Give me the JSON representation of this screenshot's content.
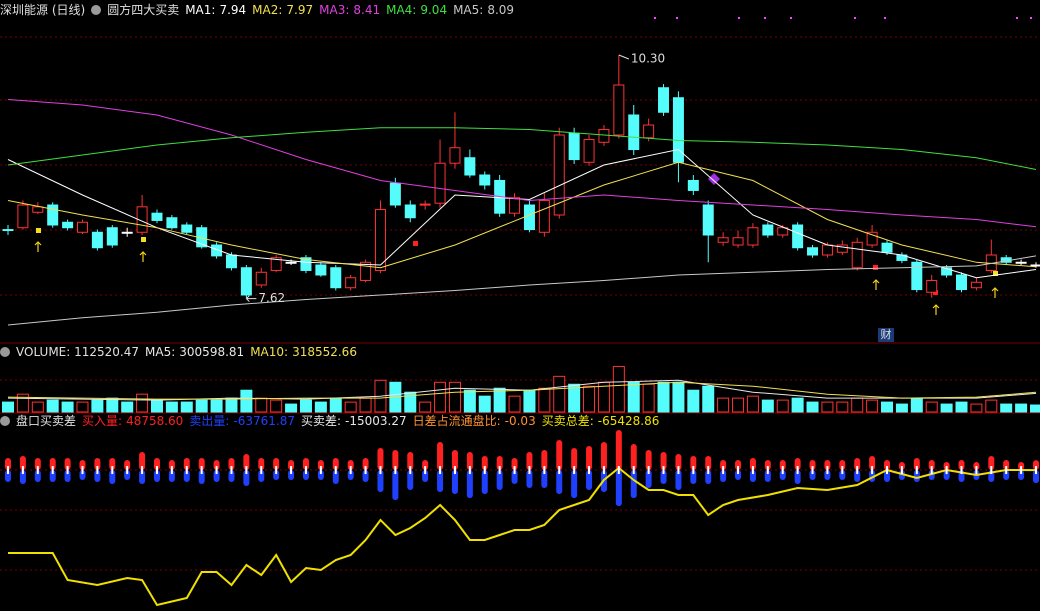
{
  "chart_data": [
    {
      "type": "candlestick",
      "title": "深圳能源 (日线)",
      "indicator": "圆方四大买卖",
      "xlim": [
        1,
        70
      ],
      "ylim": [
        7.275,
        10.905
      ],
      "candles": {
        "open": [
          8.38,
          8.4,
          8.57,
          8.65,
          8.46,
          8.35,
          8.35,
          8.4,
          8.35,
          8.35,
          8.56,
          8.51,
          8.43,
          8.4,
          8.21,
          8.1,
          7.96,
          7.77,
          7.93,
          8.02,
          8.07,
          7.99,
          7.96,
          7.74,
          7.82,
          7.93,
          8.89,
          8.65,
          8.65,
          8.67,
          9.11,
          9.17,
          8.98,
          8.92,
          8.56,
          8.65,
          8.35,
          8.54,
          9.44,
          9.12,
          9.34,
          9.42,
          9.64,
          9.39,
          9.94,
          9.83,
          8.92,
          8.65,
          8.24,
          8.21,
          8.21,
          8.43,
          8.32,
          8.43,
          8.18,
          8.1,
          8.13,
          7.96,
          8.21,
          8.23,
          8.1,
          8.02,
          7.69,
          7.96,
          7.88,
          7.74,
          7.93,
          8.07,
          8.02,
          7.99
        ],
        "high": [
          8.43,
          8.7,
          8.68,
          8.68,
          8.49,
          8.49,
          8.38,
          8.43,
          8.4,
          8.76,
          8.6,
          8.54,
          8.46,
          8.43,
          8.24,
          8.13,
          7.99,
          7.96,
          8.1,
          8.05,
          8.1,
          8.02,
          7.99,
          7.88,
          8.05,
          8.7,
          8.95,
          8.7,
          8.7,
          9.37,
          9.67,
          9.26,
          9.02,
          8.98,
          8.78,
          8.7,
          8.78,
          9.5,
          9.5,
          9.42,
          9.53,
          10.3,
          9.75,
          9.6,
          9.98,
          9.9,
          8.98,
          8.7,
          8.35,
          8.37,
          8.45,
          8.46,
          8.43,
          8.46,
          8.21,
          8.24,
          8.26,
          8.29,
          8.43,
          8.26,
          8.13,
          8.05,
          7.88,
          7.99,
          7.91,
          7.85,
          8.27,
          8.1,
          8.05,
          8.02
        ],
        "low": [
          8.32,
          8.38,
          8.55,
          8.4,
          8.37,
          8.33,
          8.15,
          8.18,
          8.3,
          8.32,
          8.45,
          8.38,
          8.33,
          8.17,
          8.06,
          7.93,
          7.62,
          7.74,
          7.91,
          7.99,
          7.9,
          7.86,
          7.71,
          7.71,
          7.8,
          7.9,
          8.62,
          8.46,
          8.6,
          8.62,
          9.05,
          8.95,
          8.82,
          8.52,
          8.52,
          8.35,
          8.3,
          8.5,
          9.1,
          9.08,
          9.3,
          9.38,
          9.2,
          9.35,
          9.63,
          8.9,
          8.76,
          8.02,
          8.2,
          8.18,
          8.18,
          8.29,
          8.29,
          8.15,
          8.07,
          8.07,
          8.1,
          7.93,
          8.18,
          8.1,
          8.01,
          7.69,
          7.63,
          7.85,
          7.69,
          7.71,
          7.9,
          7.99,
          7.99,
          7.96
        ],
        "close": [
          8.37,
          8.65,
          8.63,
          8.43,
          8.4,
          8.46,
          8.18,
          8.21,
          8.35,
          8.63,
          8.48,
          8.4,
          8.35,
          8.19,
          8.09,
          7.96,
          7.66,
          7.91,
          8.07,
          8.02,
          7.93,
          7.88,
          7.74,
          7.85,
          8.02,
          8.6,
          8.65,
          8.51,
          8.66,
          9.11,
          9.28,
          8.98,
          8.87,
          8.56,
          8.73,
          8.38,
          8.7,
          9.42,
          9.15,
          9.37,
          9.48,
          9.97,
          9.26,
          9.53,
          9.67,
          9.12,
          8.81,
          8.32,
          8.29,
          8.29,
          8.4,
          8.32,
          8.4,
          8.18,
          8.1,
          8.21,
          8.21,
          8.24,
          8.35,
          8.13,
          8.04,
          7.72,
          7.82,
          7.88,
          7.72,
          7.8,
          8.1,
          8.02,
          8.02,
          7.99
        ]
      },
      "up_color": "#ff3232",
      "down_color": "#54fcfc",
      "ma_x": [
        1,
        6,
        11,
        16,
        21,
        26,
        31,
        36,
        41,
        46,
        51,
        56,
        61,
        66,
        70
      ],
      "series": [
        {
          "name": "MA1:",
          "current": 7.94,
          "color": "#ffffff",
          "values": [
            9.15,
            8.76,
            8.4,
            8.1,
            8.02,
            7.99,
            8.76,
            8.71,
            9.09,
            9.26,
            8.54,
            8.21,
            8.1,
            7.85,
            7.94
          ]
        },
        {
          "name": "MA2:",
          "current": 7.97,
          "color": "#f0e050",
          "values": [
            8.7,
            8.54,
            8.4,
            8.21,
            8.05,
            7.96,
            8.21,
            8.54,
            8.87,
            9.12,
            8.92,
            8.49,
            8.21,
            8.02,
            7.97
          ]
        },
        {
          "name": "MA3:",
          "current": 8.41,
          "color": "#e040e0",
          "values": [
            9.81,
            9.75,
            9.64,
            9.42,
            9.15,
            8.92,
            8.81,
            8.7,
            8.76,
            8.7,
            8.65,
            8.6,
            8.54,
            8.49,
            8.41
          ]
        },
        {
          "name": "MA4:",
          "current": 9.04,
          "color": "#40e040",
          "values": [
            9.09,
            9.2,
            9.31,
            9.39,
            9.45,
            9.5,
            9.5,
            9.48,
            9.42,
            9.36,
            9.34,
            9.31,
            9.26,
            9.17,
            9.04
          ]
        },
        {
          "name": "MA5:",
          "current": 8.09,
          "color": "#c8c8c8",
          "values": [
            7.33,
            7.41,
            7.47,
            7.55,
            7.61,
            7.66,
            7.71,
            7.77,
            7.82,
            7.88,
            7.91,
            7.94,
            7.96,
            7.98,
            8.09
          ]
        }
      ],
      "max_marker": {
        "value": 10.3,
        "label": "10.30"
      },
      "min_marker": 7.62,
      "event_label": "财"
    },
    {
      "type": "bar",
      "title": "VOLUME:",
      "xlim": [
        1,
        70
      ],
      "ylim": [
        0,
        840000
      ],
      "values": [
        160000,
        288000,
        160000,
        192000,
        160000,
        160000,
        192000,
        224000,
        160000,
        288000,
        192000,
        160000,
        160000,
        192000,
        192000,
        224000,
        352000,
        224000,
        192000,
        128000,
        192000,
        160000,
        224000,
        160000,
        224000,
        512000,
        480000,
        320000,
        160000,
        480000,
        480000,
        352000,
        256000,
        384000,
        256000,
        352000,
        384000,
        576000,
        448000,
        416000,
        480000,
        736000,
        480000,
        448000,
        480000,
        480000,
        352000,
        416000,
        224000,
        224000,
        256000,
        192000,
        192000,
        224000,
        160000,
        160000,
        160000,
        224000,
        192000,
        160000,
        128000,
        224000,
        160000,
        128000,
        160000,
        128000,
        192000,
        128000,
        128000,
        112520.47
      ],
      "ma_x": [
        1,
        6,
        11,
        16,
        21,
        26,
        31,
        36,
        41,
        46,
        51,
        56,
        61,
        66,
        70
      ],
      "series": [
        {
          "name": "MA5:",
          "current": 300598.81,
          "color": "#e8e8e8",
          "values": [
            224000,
            208000,
            192000,
            224000,
            208000,
            256000,
            384000,
            352000,
            480000,
            512000,
            320000,
            224000,
            224000,
            224000,
            300598.81
          ]
        },
        {
          "name": "MA10:",
          "current": 318552.66,
          "color": "#f0e050",
          "values": [
            240000,
            224000,
            208000,
            208000,
            224000,
            224000,
            320000,
            352000,
            416000,
            480000,
            416000,
            288000,
            224000,
            240000,
            318552.66
          ]
        }
      ]
    },
    {
      "type": "diverging-bar",
      "title": "盘口买卖差",
      "xlim": [
        1,
        70
      ],
      "ylim": [
        -690000,
        196000
      ],
      "y2lim": [
        -770000,
        135000
      ],
      "series": [
        {
          "name": "买入量:",
          "color": "#ff2020",
          "current": {
            "value": 48758.6,
            "label": "48758.60"
          },
          "values": [
            58800,
            68600,
            58800,
            58800,
            58800,
            49000,
            58800,
            58800,
            49000,
            88200,
            58800,
            49000,
            58800,
            58800,
            49000,
            58800,
            78400,
            58800,
            58800,
            49000,
            58800,
            49000,
            58800,
            49000,
            58800,
            107800,
            98000,
            88200,
            49000,
            137200,
            98000,
            88200,
            68600,
            68600,
            58800,
            88200,
            98000,
            147000,
            107800,
            117600,
            137200,
            196000,
            127400,
            98000,
            88200,
            78400,
            68600,
            68600,
            49000,
            49000,
            58800,
            49000,
            49000,
            58800,
            49000,
            49000,
            49000,
            58800,
            68600,
            49000,
            39200,
            58800,
            49000,
            39200,
            49000,
            39200,
            68600,
            49000,
            39200,
            48758.6
          ]
        },
        {
          "name": "卖出量:",
          "color": "#2040ff",
          "current": -63761.87,
          "values": [
            -58800,
            -68600,
            -58800,
            -58800,
            -58800,
            -49000,
            -58800,
            -68600,
            -49000,
            -68600,
            -58800,
            -58800,
            -58800,
            -68600,
            -58800,
            -58800,
            -78400,
            -58800,
            -49000,
            -49000,
            -49000,
            -49000,
            -68600,
            -49000,
            -58800,
            -107800,
            -147000,
            -98000,
            -58800,
            -107800,
            -117600,
            -137200,
            -117600,
            -98000,
            -68600,
            -88200,
            -88200,
            -117600,
            -137200,
            -98000,
            -107800,
            -176400,
            -137200,
            -88200,
            -68600,
            -98000,
            -68600,
            -68600,
            -58800,
            -49000,
            -58800,
            -58800,
            -49000,
            -68600,
            -49000,
            -49000,
            -49000,
            -58800,
            -58800,
            -58800,
            -49000,
            -58800,
            -49000,
            -49000,
            -58800,
            -49000,
            -58800,
            -49000,
            -49000,
            -63761.87
          ]
        },
        {
          "name": "买卖总差:",
          "color": "#f0e000",
          "axis": "y2",
          "current": -65428.86,
          "x": [
            1,
            4,
            5,
            7,
            9,
            10,
            11,
            13,
            14,
            15,
            16,
            17,
            18,
            19,
            20,
            21,
            22,
            23,
            24,
            25,
            26,
            27,
            28,
            29,
            30,
            31,
            32,
            33,
            34,
            35,
            36,
            37,
            38,
            39,
            40,
            41,
            42,
            43,
            44,
            45,
            46,
            47,
            48,
            49,
            50,
            52,
            54,
            56,
            58,
            60,
            62,
            64,
            66,
            68,
            70
          ],
          "values": [
            -480000,
            -480000,
            -615000,
            -640000,
            -605000,
            -615000,
            -740000,
            -705000,
            -575000,
            -575000,
            -640000,
            -540000,
            -590000,
            -490000,
            -625000,
            -555000,
            -565000,
            -515000,
            -490000,
            -415000,
            -315000,
            -390000,
            -355000,
            -305000,
            -240000,
            -315000,
            -415000,
            -415000,
            -390000,
            -365000,
            -365000,
            -340000,
            -265000,
            -240000,
            -215000,
            -115000,
            -55000,
            -115000,
            -165000,
            -165000,
            -190000,
            -190000,
            -290000,
            -240000,
            -215000,
            -190000,
            -155000,
            -165000,
            -140000,
            -65000,
            -105000,
            -65000,
            -90000,
            -65000,
            -65428.86
          ]
        }
      ],
      "stats": [
        {
          "name": "买卖差:",
          "color": "#e8e8e8",
          "value": -15003.27
        },
        {
          "name": "日差占流通盘比:",
          "color": "#ff9030",
          "value": -0.03
        }
      ]
    }
  ]
}
